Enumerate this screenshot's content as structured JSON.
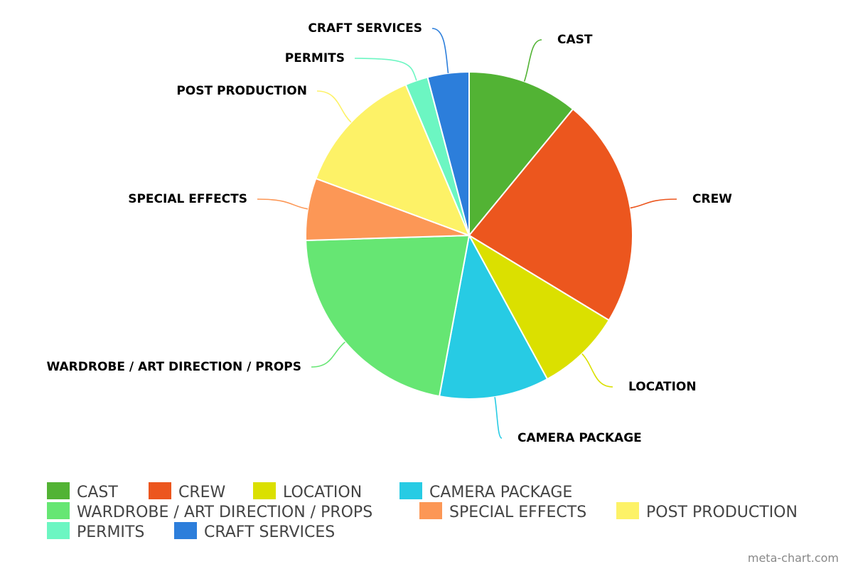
{
  "chart_data": {
    "type": "pie",
    "start_angle_deg": 0,
    "direction": "clockwise",
    "legend_position": "bottom",
    "slices": [
      {
        "label": "CAST",
        "value": 10.7,
        "color": "#52b334"
      },
      {
        "label": "CREW",
        "value": 22.2,
        "color": "#ec561e"
      },
      {
        "label": "LOCATION",
        "value": 8.2,
        "color": "#dbe000"
      },
      {
        "label": "CAMERA PACKAGE",
        "value": 10.6,
        "color": "#27cbe4"
      },
      {
        "label": "WARDROBE / ART DIRECTION / PROPS",
        "value": 21.1,
        "color": "#66e673"
      },
      {
        "label": "SPECIAL EFFECTS",
        "value": 6.0,
        "color": "#fc9756"
      },
      {
        "label": "POST PRODUCTION",
        "value": 12.7,
        "color": "#fdf267"
      },
      {
        "label": "PERMITS",
        "value": 2.2,
        "color": "#6cf6c2"
      },
      {
        "label": "CRAFT SERVICES",
        "value": 4.0,
        "color": "#2c7edb"
      }
    ]
  },
  "credit": "meta-chart.com"
}
